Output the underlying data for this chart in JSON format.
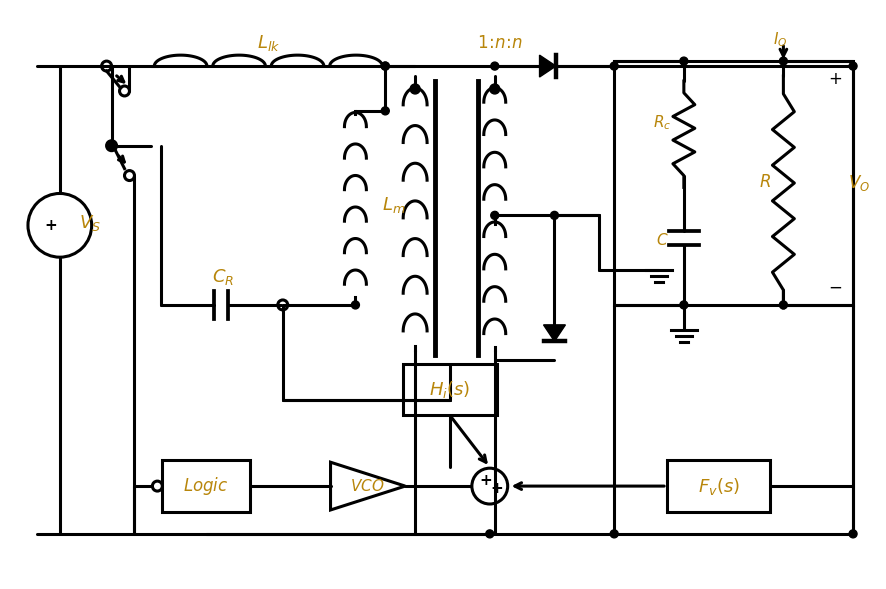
{
  "bg_color": "#ffffff",
  "line_color": "#000000",
  "label_color": "#b8860b",
  "fig_width": 8.87,
  "fig_height": 5.89,
  "dpi": 100
}
